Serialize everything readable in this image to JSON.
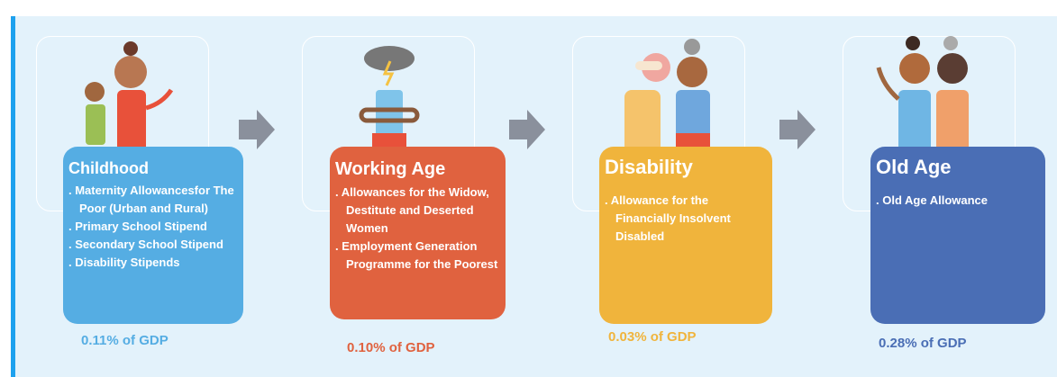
{
  "stages": [
    {
      "title": "Childhood",
      "items": [
        ". Maternity Allowancesfor The Poor (Urban and Rural)",
        ". Primary School Stipend",
        ". Secondary School Stipend",
        ". Disability Stipends"
      ],
      "gdp": "0.11% of GDP"
    },
    {
      "title": "Working Age",
      "items": [
        ". Allowances for the Widow, Destitute and Deserted Women",
        ". Employment Generation Programme for the Poorest"
      ],
      "gdp": "0.10% of GDP"
    },
    {
      "title": "Disability",
      "items": [
        ". Allowance for the Financially Insolvent Disabled"
      ],
      "gdp": "0.03% of GDP"
    },
    {
      "title": "Old Age",
      "items": [
        ". Old Age Allowance"
      ],
      "gdp": "0.28% of GDP"
    }
  ]
}
